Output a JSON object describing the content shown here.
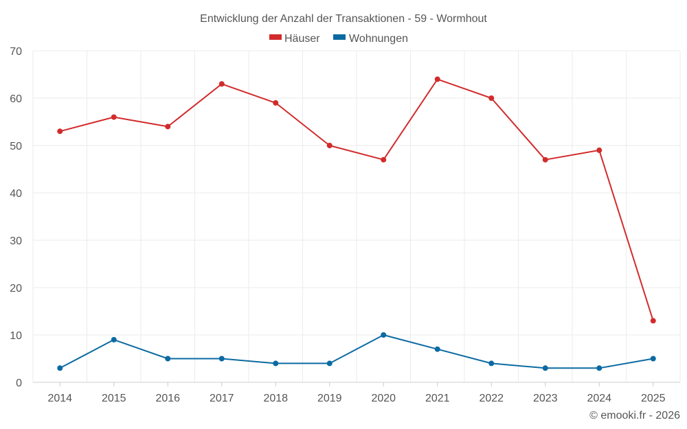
{
  "chart_data": {
    "type": "line",
    "title": "Entwicklung der Anzahl der Transaktionen - 59 - Wormhout",
    "categories": [
      "2014",
      "2015",
      "2016",
      "2017",
      "2018",
      "2019",
      "2020",
      "2021",
      "2022",
      "2023",
      "2024",
      "2025"
    ],
    "series": [
      {
        "name": "Häuser",
        "color": "#d22b2b",
        "values": [
          53,
          56,
          54,
          63,
          59,
          50,
          47,
          64,
          60,
          47,
          49,
          13
        ]
      },
      {
        "name": "Wohnungen",
        "color": "#0b6aa2",
        "values": [
          3,
          9,
          5,
          5,
          4,
          4,
          10,
          7,
          4,
          3,
          3,
          5
        ]
      }
    ],
    "ylim": [
      0,
      70
    ],
    "yticks": [
      0,
      10,
      20,
      30,
      40,
      50,
      60,
      70
    ],
    "xlabel": "",
    "ylabel": "",
    "grid": true,
    "legend": "top-center"
  },
  "credit": "© emooki.fr - 2026"
}
